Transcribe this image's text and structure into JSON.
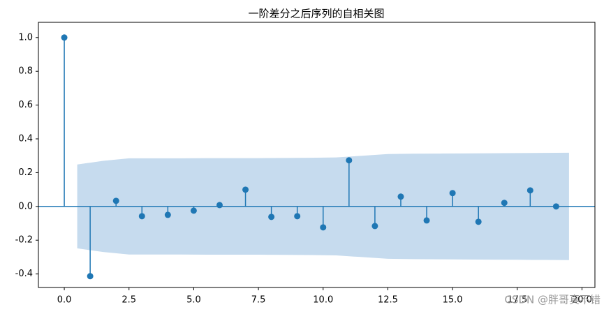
{
  "chart_data": {
    "type": "stem",
    "title": "一阶差分之后序列的自相关图",
    "color": "#1f77b4",
    "x": [
      0,
      1,
      2,
      3,
      4,
      5,
      6,
      7,
      8,
      9,
      10,
      11,
      12,
      13,
      14,
      15,
      16,
      17,
      18,
      19
    ],
    "values": [
      1.0,
      -0.413,
      0.033,
      -0.058,
      -0.05,
      -0.025,
      0.008,
      0.099,
      -0.062,
      -0.058,
      -0.124,
      0.273,
      -0.116,
      0.058,
      -0.083,
      0.079,
      -0.091,
      0.021,
      0.095,
      0.0
    ],
    "confidence_band": {
      "color": "#c6dbee",
      "x": [
        0.5,
        1.5,
        2.5,
        3.5,
        4.5,
        5.5,
        6.5,
        7.5,
        8.5,
        9.5,
        10.5,
        11.5,
        12.5,
        13.5,
        14.5,
        15.5,
        16.5,
        17.5,
        18.5,
        19.5
      ],
      "upper": [
        0.248,
        0.27,
        0.285,
        0.285,
        0.285,
        0.286,
        0.286,
        0.286,
        0.287,
        0.288,
        0.29,
        0.3,
        0.31,
        0.312,
        0.313,
        0.314,
        0.315,
        0.316,
        0.317,
        0.318
      ],
      "lower": [
        -0.248,
        -0.27,
        -0.285,
        -0.285,
        -0.285,
        -0.286,
        -0.286,
        -0.286,
        -0.287,
        -0.288,
        -0.29,
        -0.3,
        -0.31,
        -0.312,
        -0.313,
        -0.314,
        -0.315,
        -0.316,
        -0.317,
        -0.318
      ]
    },
    "xlim": [
      -1,
      20.5
    ],
    "ylim": [
      -0.48,
      1.09
    ],
    "xticks": [
      {
        "value": 0,
        "label": "0.0"
      },
      2.5,
      {
        "value": 5,
        "label": "5.0"
      },
      7.5,
      {
        "value": 10,
        "label": "10.0"
      },
      12.5,
      {
        "value": 15,
        "label": "15.0"
      },
      17.5,
      {
        "value": 20,
        "label": "20.0"
      }
    ],
    "yticks": [
      -0.4,
      -0.2,
      {
        "value": 0,
        "label": "0.0"
      },
      0.2,
      0.4,
      0.6,
      0.8,
      {
        "value": 1,
        "label": "1.0"
      }
    ],
    "watermark": "CSDN @胖哥真不错"
  }
}
